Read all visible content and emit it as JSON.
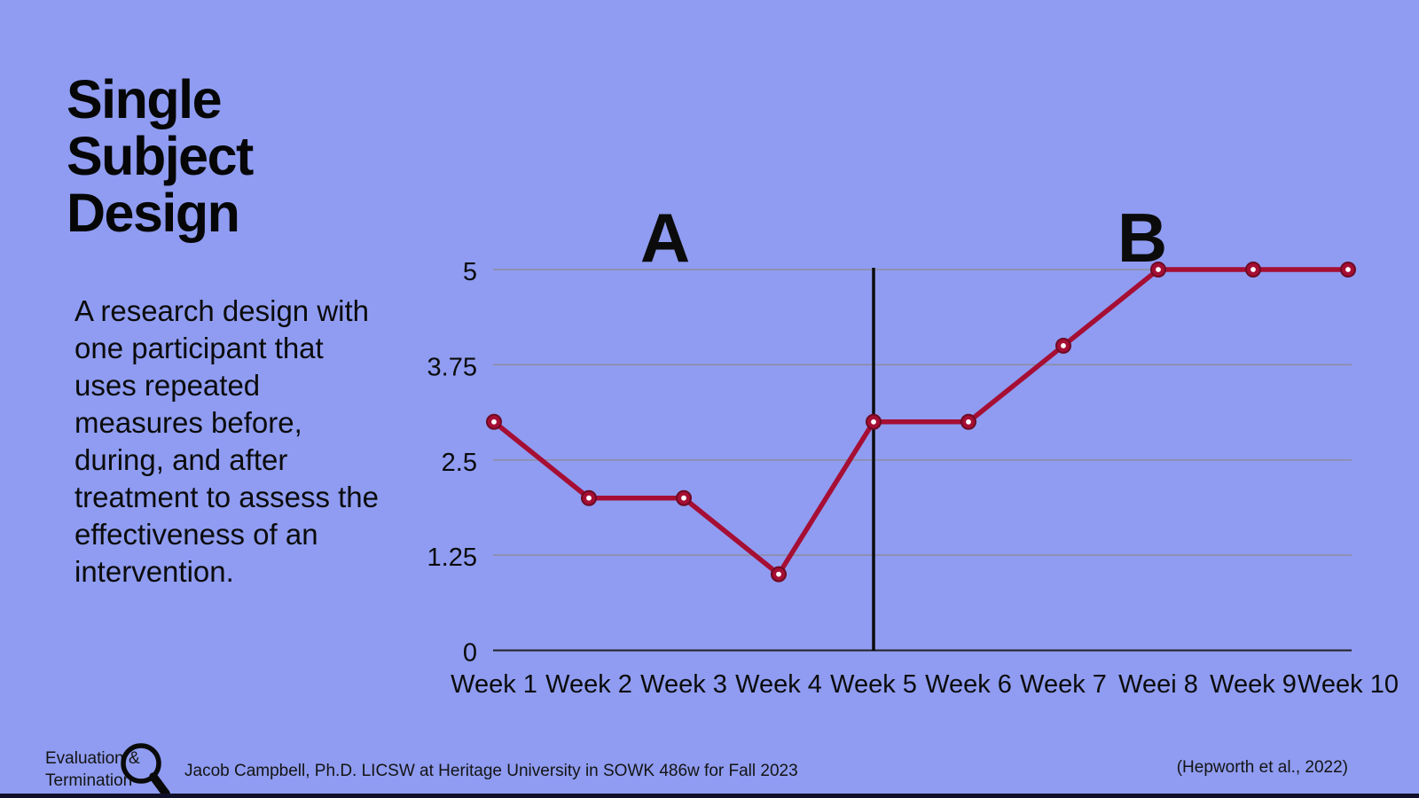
{
  "title_lines": [
    "Single",
    "Subject",
    "Design"
  ],
  "description": "A research design with one participant that uses repeated measures before, during, and after treatment to assess the effectiveness of an intervention.",
  "colors": {
    "background": "#8f9cf1",
    "line": "#a60e34",
    "marker_edge": "#6e0922",
    "marker_center": "#ffffff",
    "gridline": "#8d8d9e",
    "axis": "#222222",
    "divider": "#0c0c0c",
    "text": "#0b0b0b",
    "bottom_strip": "#10102a"
  },
  "chart_data": {
    "type": "line",
    "categories": [
      "Week 1",
      "Week 2",
      "Week 3",
      "Week 4",
      "Week 5",
      "Week 6",
      "Week 7",
      "Weei 8",
      "Week 9",
      "Week 10"
    ],
    "values": [
      3,
      2,
      2,
      1,
      3,
      3,
      4,
      5,
      5,
      5
    ],
    "series_name": "single-subject-measure",
    "title": "",
    "xlabel": "",
    "ylabel": "",
    "ylim": [
      0,
      5
    ],
    "y_ticks": [
      {
        "label": "5",
        "value": 5
      },
      {
        "label": "3.75",
        "value": 3.75
      },
      {
        "label": "2.5",
        "value": 2.5
      },
      {
        "label": "1.25",
        "value": 1.25
      },
      {
        "label": "0",
        "value": 0
      }
    ],
    "grid": "horizontal",
    "legend": "none",
    "phase_labels": [
      "A",
      "B"
    ],
    "phase_divider_at_category": "Week 5",
    "phase_divider_index": 4
  },
  "footer": {
    "tab_line1": "Evaluation &",
    "tab_line2": "Termination",
    "magnifier_icon": "magnifying-glass",
    "credit": "Jacob Campbell, Ph.D. LICSW at Heritage University in SOWK 486w for Fall 2023",
    "citation": "(Hepworth et al., 2022)"
  }
}
